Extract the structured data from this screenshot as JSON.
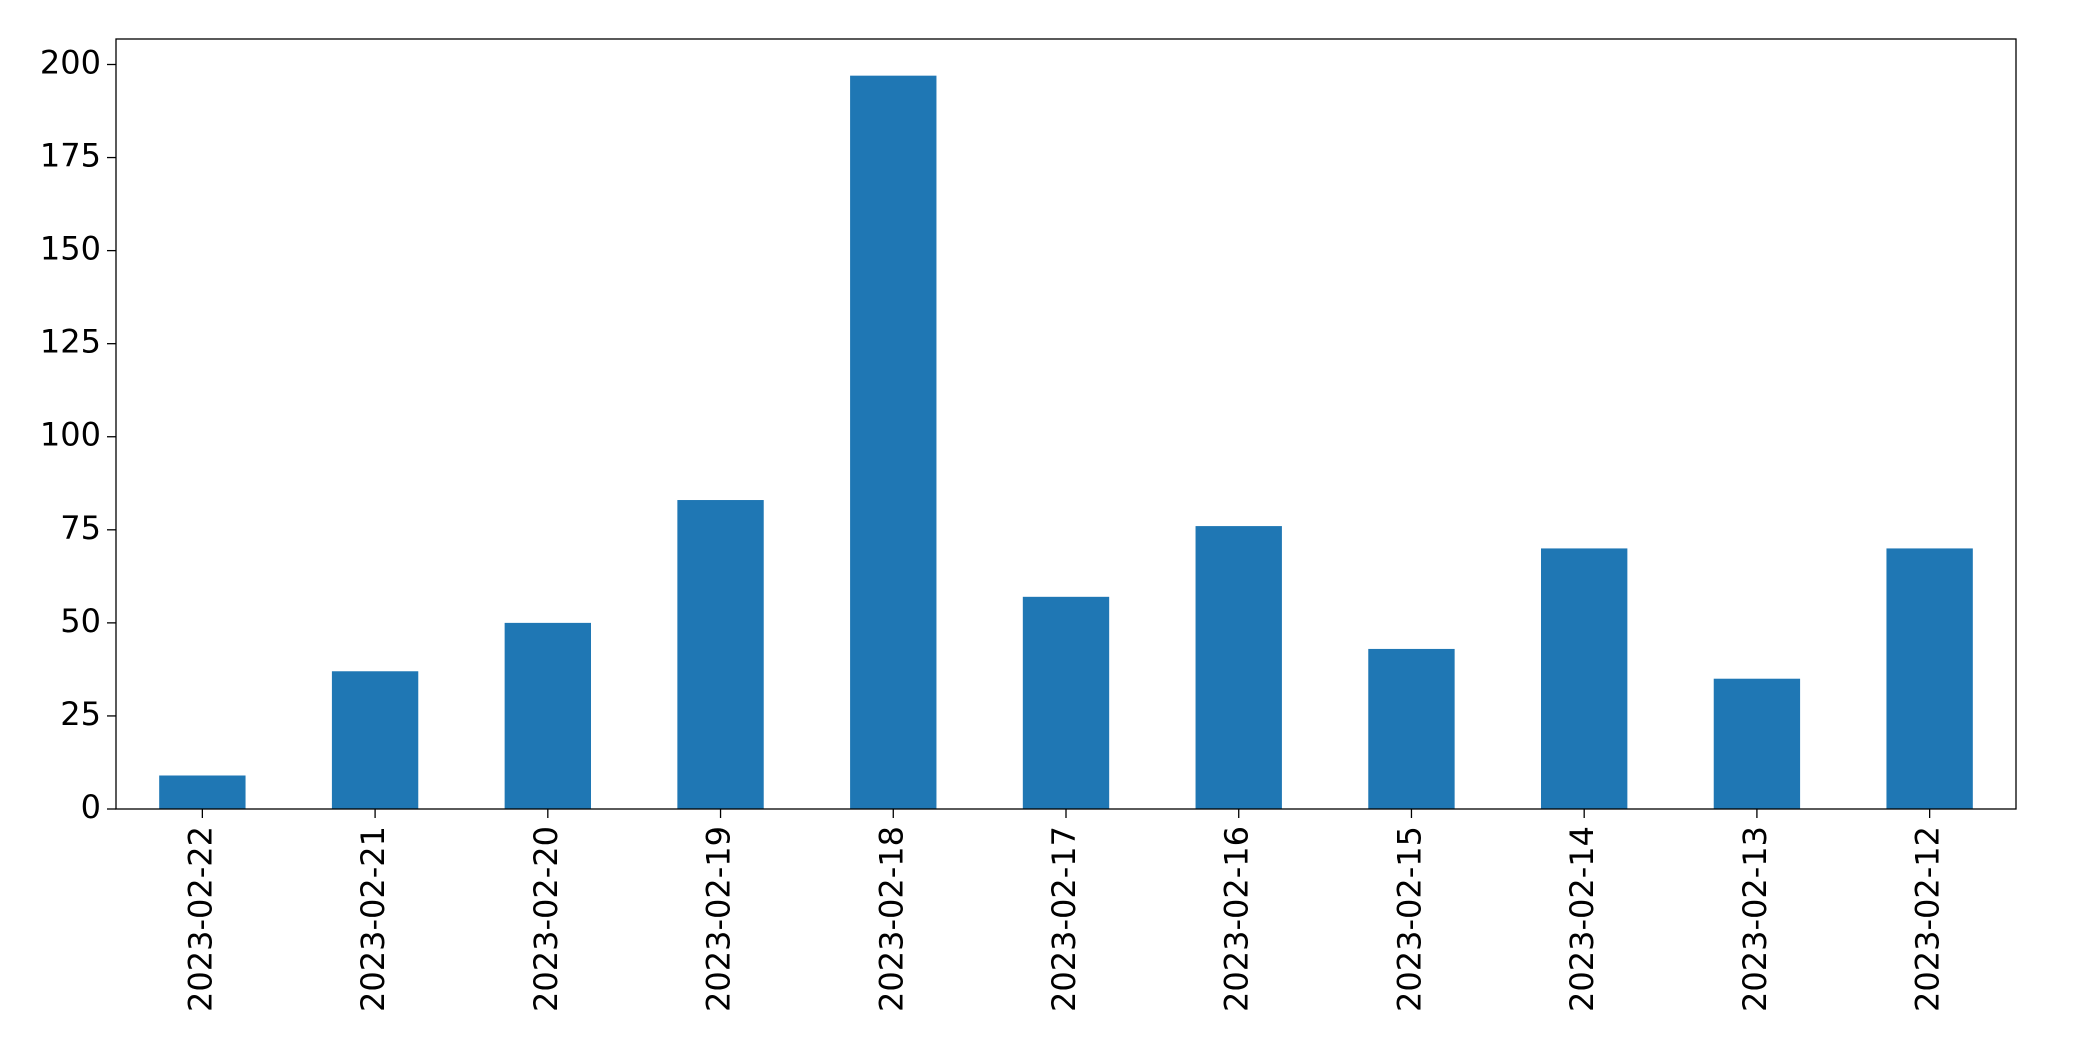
{
  "chart_data": {
    "type": "bar",
    "categories": [
      "2023-02-22",
      "2023-02-21",
      "2023-02-20",
      "2023-02-19",
      "2023-02-18",
      "2023-02-17",
      "2023-02-16",
      "2023-02-15",
      "2023-02-14",
      "2023-02-13",
      "2023-02-12"
    ],
    "values": [
      9,
      37,
      50,
      83,
      197,
      57,
      76,
      43,
      70,
      35,
      70
    ],
    "color": "#1f77b4",
    "ylim": [
      0,
      206.85
    ],
    "yticks": [
      0,
      25,
      50,
      75,
      100,
      125,
      150,
      175,
      200
    ],
    "grid": false
  }
}
